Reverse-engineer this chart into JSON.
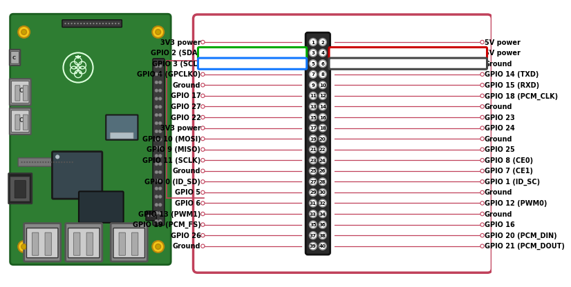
{
  "bg_color": "#ffffff",
  "border_color": "#c0405a",
  "line_color": "#c0405a",
  "left_pins": [
    "3V3 power",
    "GPIO 2 (SDA)",
    "GPIO 3 (SCL)",
    "GPIO 4 (GPCLK0)",
    "Ground",
    "GPIO 17",
    "GPIO 27",
    "GPIO 22",
    "3V3 power",
    "GPIO 10 (MOSI)",
    "GPIO 9 (MISO)",
    "GPIO 11 (SCLK)",
    "Ground",
    "GPIO 0 (ID_SD)",
    "GPIO 5",
    "GPIO 6",
    "GPIO 13 (PWM1)",
    "GPIO 19 (PCM_FS)",
    "GPIO 26",
    "Ground"
  ],
  "right_pins": [
    "5V power",
    "5V power",
    "Ground",
    "GPIO 14 (TXD)",
    "GPIO 15 (RXD)",
    "GPIO 18 (PCM_CLK)",
    "Ground",
    "GPIO 23",
    "GPIO 24",
    "Ground",
    "GPIO 25",
    "GPIO 8 (CE0)",
    "GPIO 7 (CE1)",
    "GPIO 1 (ID_SC)",
    "Ground",
    "GPIO 12 (PWM0)",
    "Ground",
    "GPIO 16",
    "GPIO 20 (PCM_DIN)",
    "GPIO 21 (PCM_DOUT)"
  ],
  "pin_numbers_left": [
    1,
    3,
    5,
    7,
    9,
    11,
    13,
    15,
    17,
    19,
    21,
    23,
    25,
    27,
    29,
    31,
    33,
    35,
    37,
    39
  ],
  "pin_numbers_right": [
    2,
    4,
    6,
    8,
    10,
    12,
    14,
    16,
    18,
    20,
    22,
    24,
    26,
    28,
    30,
    32,
    34,
    36,
    38,
    40
  ],
  "highlight_green_row": 1,
  "highlight_red_row": 1,
  "highlight_blue_row": 2,
  "highlight_dark_row": 2,
  "highlight_colors": {
    "green": "#00aa00",
    "blue": "#1177ff",
    "red": "#cc0000",
    "dark": "#444444"
  },
  "board_green": "#2e7d32",
  "board_edge": "#1b5e20",
  "board_inner": "#1b6b1b",
  "chip_dark": "#37474f",
  "chip_light": "#b0bec5",
  "gold": "#f5c518",
  "gold_dark": "#b8860b"
}
